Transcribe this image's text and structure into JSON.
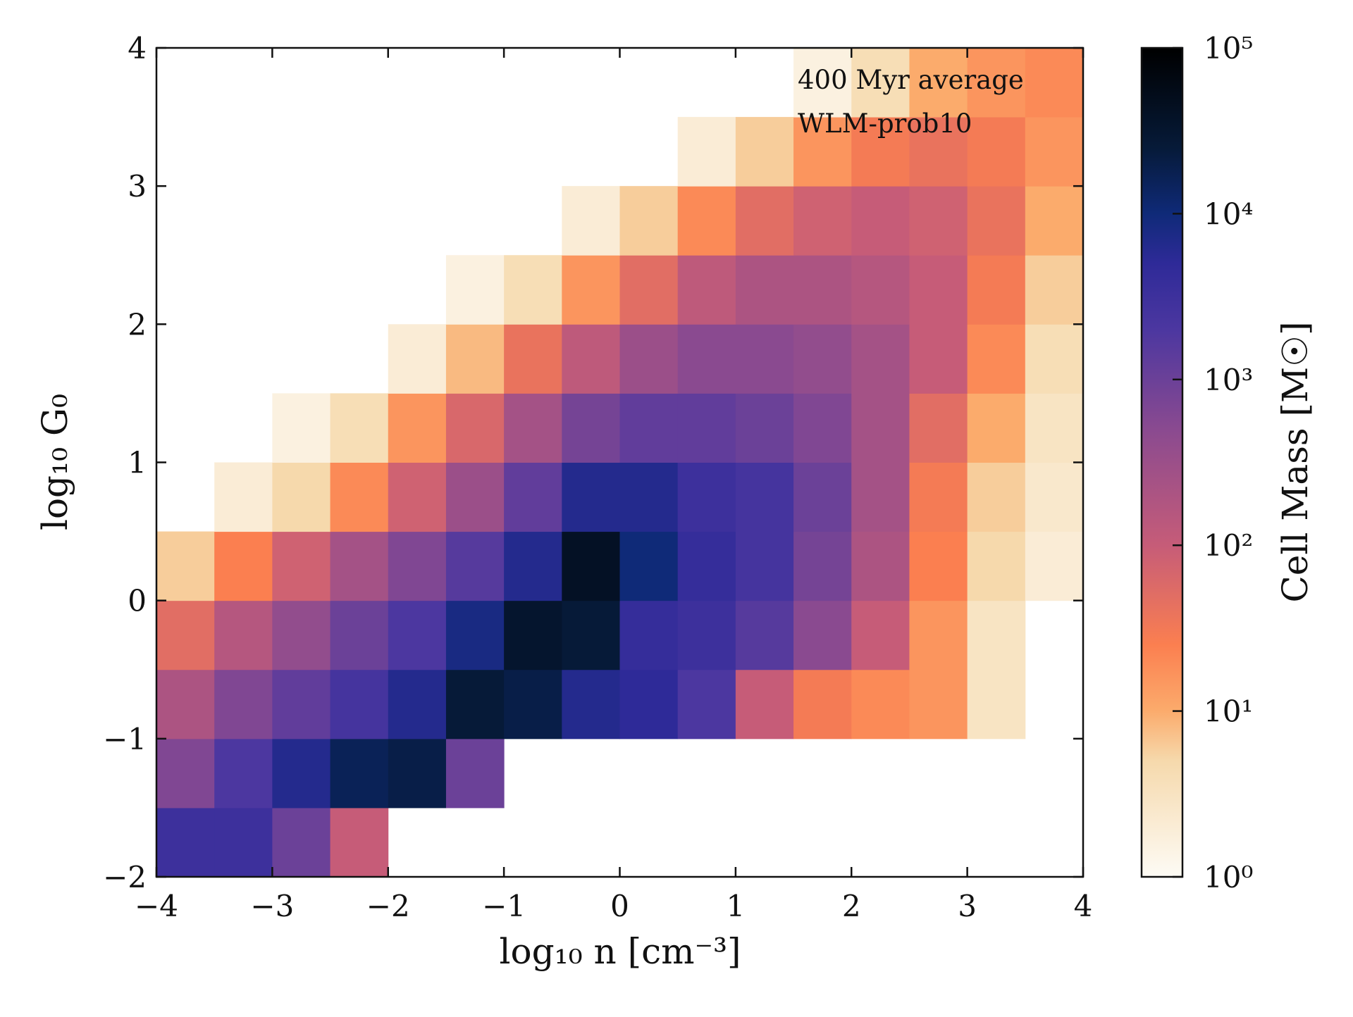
{
  "chart_data": {
    "type": "hist2d",
    "xlabel": "log₁₀ n [cm⁻³]",
    "ylabel": "log₁₀ G₀",
    "colorbar_label": "Cell Mass [M☉]",
    "annotations": [
      "400 Myr average",
      "WLM-prob10"
    ],
    "x_edges": [
      -4,
      -3.5,
      -3,
      -2.5,
      -2,
      -1.5,
      -1,
      -0.5,
      0,
      0.5,
      1,
      1.5,
      2,
      2.5,
      3,
      3.5,
      4
    ],
    "y_edges": [
      -2,
      -1.5,
      -1,
      -0.5,
      0,
      0.5,
      1,
      1.5,
      2,
      2.5,
      3,
      3.5,
      4
    ],
    "values": [
      [
        3200,
        3200,
        1000,
        100,
        null,
        null,
        null,
        null,
        null,
        null,
        null,
        null,
        null,
        null,
        null,
        null
      ],
      [
        630,
        2000,
        6300,
        16000,
        20000,
        1000,
        null,
        null,
        null,
        null,
        null,
        null,
        null,
        null,
        null,
        null
      ],
      [
        200,
        630,
        1250,
        2500,
        6300,
        25000,
        20000,
        6300,
        5000,
        2000,
        100,
        30,
        20,
        16,
        3,
        null
      ],
      [
        50,
        160,
        400,
        1000,
        2000,
        8000,
        32000,
        25000,
        4000,
        3200,
        1600,
        500,
        100,
        16,
        3,
        null
      ],
      [
        6,
        25,
        80,
        250,
        630,
        1600,
        6300,
        40000,
        10000,
        4000,
        2500,
        800,
        200,
        25,
        5,
        2
      ],
      [
        null,
        2,
        5,
        20,
        80,
        320,
        1250,
        6300,
        6300,
        3200,
        2500,
        1000,
        250,
        30,
        6,
        2.5
      ],
      [
        null,
        null,
        1.6,
        4,
        16,
        63,
        250,
        800,
        1250,
        1250,
        1000,
        630,
        250,
        50,
        10,
        3
      ],
      [
        null,
        null,
        null,
        null,
        2,
        8,
        40,
        125,
        320,
        500,
        500,
        400,
        250,
        100,
        20,
        4
      ],
      [
        null,
        null,
        null,
        null,
        null,
        1.6,
        4,
        16,
        50,
        125,
        200,
        200,
        160,
        100,
        30,
        6
      ],
      [
        null,
        null,
        null,
        null,
        null,
        null,
        null,
        2,
        6,
        20,
        50,
        80,
        100,
        80,
        40,
        10
      ],
      [
        null,
        null,
        null,
        null,
        null,
        null,
        null,
        null,
        null,
        2,
        6,
        16,
        30,
        40,
        30,
        16
      ],
      [
        null,
        null,
        null,
        null,
        null,
        null,
        null,
        null,
        null,
        null,
        null,
        1.6,
        4,
        10,
        16,
        20
      ]
    ],
    "xlim": [
      -4,
      4
    ],
    "ylim": [
      -2,
      4
    ],
    "xticks": [
      {
        "value": -4,
        "label": "−4"
      },
      {
        "value": -3,
        "label": "−3"
      },
      {
        "value": -2,
        "label": "−2"
      },
      {
        "value": -1,
        "label": "−1"
      },
      0,
      1,
      2,
      3,
      4
    ],
    "yticks": [
      {
        "value": -2,
        "label": "−2"
      },
      {
        "value": -1,
        "label": "−1"
      },
      0,
      1,
      2,
      3,
      4
    ],
    "zlim": [
      1,
      100000
    ],
    "zscale": "log",
    "zticks": [
      {
        "value": 1,
        "label": "10⁰"
      },
      {
        "value": 10,
        "label": "10¹"
      },
      {
        "value": 100,
        "label": "10²"
      },
      {
        "value": 1000,
        "label": "10³"
      },
      {
        "value": 10000,
        "label": "10⁴"
      },
      {
        "value": 100000,
        "label": "10⁵"
      }
    ],
    "colormap": [
      {
        "pos": 0,
        "color": "#fdfbf5"
      },
      {
        "pos": 0.14,
        "color": "#f6d9ac"
      },
      {
        "pos": 0.2,
        "color": "#fbab6c"
      },
      {
        "pos": 0.28,
        "color": "#fb7f50"
      },
      {
        "pos": 0.4,
        "color": "#c65c78"
      },
      {
        "pos": 0.54,
        "color": "#8a4a90"
      },
      {
        "pos": 0.66,
        "color": "#4c37a0"
      },
      {
        "pos": 0.74,
        "color": "#2e2a98"
      },
      {
        "pos": 0.8,
        "color": "#0f2a78"
      },
      {
        "pos": 0.88,
        "color": "#061a38"
      },
      {
        "pos": 1,
        "color": "#000000"
      }
    ]
  }
}
